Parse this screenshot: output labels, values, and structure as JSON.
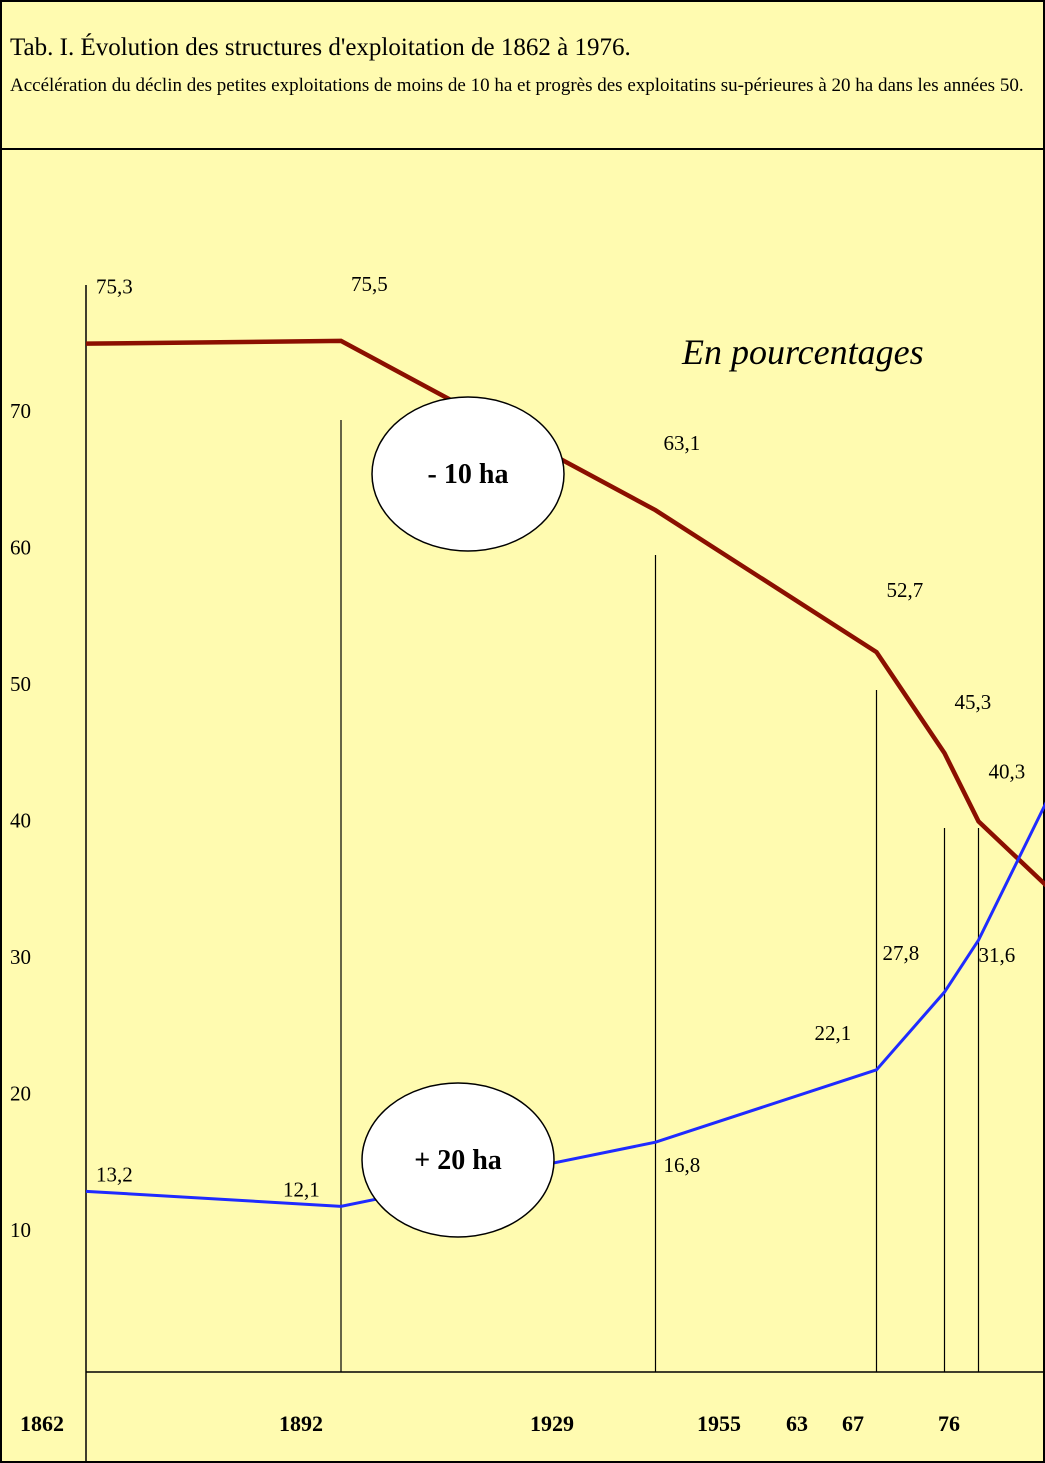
{
  "title": "Tab. I. Évolution des structures d'exploitation de 1862 à 1976.",
  "subtitle": "Accélération du déclin des petites exploitations de moins de 10 ha et progrès des exploitatins su-périeures à 20 ha dans les années 50.",
  "chart_data": {
    "type": "line",
    "annotation": "En pourcentages",
    "x": [
      1862,
      1892,
      1929,
      1955,
      1963,
      1967,
      1976
    ],
    "x_tick_labels": [
      "1862",
      "1892",
      "1929",
      "1955",
      "63",
      "67",
      "76"
    ],
    "y_ticks": [
      10,
      20,
      30,
      40,
      50,
      60,
      70
    ],
    "series": [
      {
        "name": "- 10 ha",
        "color": "#8b0f00",
        "values": [
          75.3,
          75.5,
          63.1,
          52.7,
          45.3,
          40.3,
          35
        ],
        "labels": [
          "75,3",
          "75,5",
          "63,1",
          "52,7",
          "45,3",
          "40,3",
          "35"
        ]
      },
      {
        "name": "+ 20 ha",
        "color": "#1f2bff",
        "values": [
          13.2,
          12.1,
          16.8,
          22.1,
          27.8,
          31.6,
          43
        ],
        "labels": [
          "13,2",
          "12,1",
          "16,8",
          "22,1",
          "27,8",
          "31,6",
          "43"
        ]
      }
    ],
    "legend": "ellipses on lines",
    "grid": false
  }
}
